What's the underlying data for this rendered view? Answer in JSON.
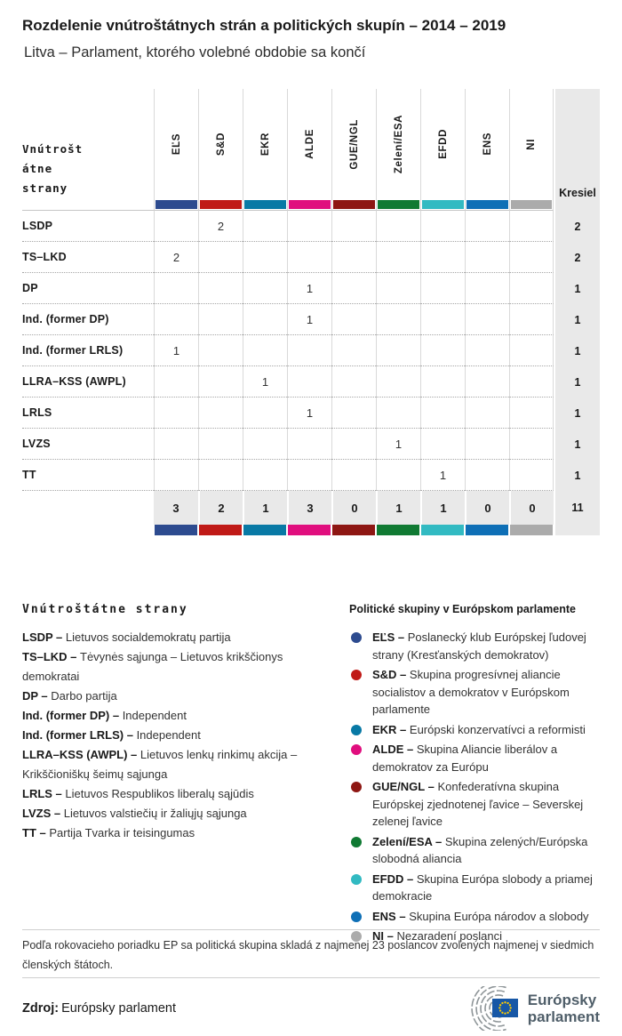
{
  "header": {
    "title": "Rozdelenie vnútroštátnych strán a politických skupín – 2014 – 2019",
    "subtitle": "Litva – Parlament, ktorého volebné obdobie sa končí"
  },
  "table": {
    "row_header_lines": [
      "Vnútrošt",
      "átne",
      "strany"
    ],
    "seats_label": "Kresiel",
    "groups": [
      {
        "label": "EĽS",
        "color": "#2d4b8f"
      },
      {
        "label": "S&D",
        "color": "#c01a17"
      },
      {
        "label": "EKR",
        "color": "#0879a5"
      },
      {
        "label": "ALDE",
        "color": "#e00e7e"
      },
      {
        "label": "GUE/NGL",
        "color": "#8e1713"
      },
      {
        "label": "Zelení/ESA",
        "color": "#107a33"
      },
      {
        "label": "EFDD",
        "color": "#32bac2"
      },
      {
        "label": "ENS",
        "color": "#0e6fb6"
      },
      {
        "label": "NI",
        "color": "#ababab"
      }
    ],
    "rows": [
      {
        "party": "LSDP",
        "cells": [
          "",
          "2",
          "",
          "",
          "",
          "",
          "",
          "",
          ""
        ],
        "seats": "2"
      },
      {
        "party": "TS–LKD",
        "cells": [
          "2",
          "",
          "",
          "",
          "",
          "",
          "",
          "",
          ""
        ],
        "seats": "2"
      },
      {
        "party": "DP",
        "cells": [
          "",
          "",
          "",
          "1",
          "",
          "",
          "",
          "",
          ""
        ],
        "seats": "1"
      },
      {
        "party": "Ind. (former DP)",
        "cells": [
          "",
          "",
          "",
          "1",
          "",
          "",
          "",
          "",
          ""
        ],
        "seats": "1"
      },
      {
        "party": "Ind. (former LRLS)",
        "cells": [
          "1",
          "",
          "",
          "",
          "",
          "",
          "",
          "",
          ""
        ],
        "seats": "1"
      },
      {
        "party": "LLRA–KSS (AWPL)",
        "cells": [
          "",
          "",
          "1",
          "",
          "",
          "",
          "",
          "",
          ""
        ],
        "seats": "1"
      },
      {
        "party": "LRLS",
        "cells": [
          "",
          "",
          "",
          "1",
          "",
          "",
          "",
          "",
          ""
        ],
        "seats": "1"
      },
      {
        "party": "LVZS",
        "cells": [
          "",
          "",
          "",
          "",
          "",
          "1",
          "",
          "",
          ""
        ],
        "seats": "1"
      },
      {
        "party": "TT",
        "cells": [
          "",
          "",
          "",
          "",
          "",
          "",
          "1",
          "",
          ""
        ],
        "seats": "1"
      }
    ],
    "totals": {
      "cells": [
        "3",
        "2",
        "1",
        "3",
        "0",
        "1",
        "1",
        "0",
        "0"
      ],
      "seats": "11"
    }
  },
  "chart_data": {
    "type": "table",
    "title": "Rozdelenie vnútroštátnych strán a politických skupín – 2014 – 2019",
    "subtitle": "Litva – Parlament, ktorého volebné obdobie sa končí",
    "columns": [
      "EĽS",
      "S&D",
      "EKR",
      "ALDE",
      "GUE/NGL",
      "Zelení/ESA",
      "EFDD",
      "ENS",
      "NI",
      "Kresiel"
    ],
    "rows": [
      {
        "party": "LSDP",
        "values": [
          null,
          2,
          null,
          null,
          null,
          null,
          null,
          null,
          null
        ],
        "seats": 2
      },
      {
        "party": "TS–LKD",
        "values": [
          2,
          null,
          null,
          null,
          null,
          null,
          null,
          null,
          null
        ],
        "seats": 2
      },
      {
        "party": "DP",
        "values": [
          null,
          null,
          null,
          1,
          null,
          null,
          null,
          null,
          null
        ],
        "seats": 1
      },
      {
        "party": "Ind. (former DP)",
        "values": [
          null,
          null,
          null,
          1,
          null,
          null,
          null,
          null,
          null
        ],
        "seats": 1
      },
      {
        "party": "Ind. (former LRLS)",
        "values": [
          1,
          null,
          null,
          null,
          null,
          null,
          null,
          null,
          null
        ],
        "seats": 1
      },
      {
        "party": "LLRA–KSS (AWPL)",
        "values": [
          null,
          null,
          1,
          null,
          null,
          null,
          null,
          null,
          null
        ],
        "seats": 1
      },
      {
        "party": "LRLS",
        "values": [
          null,
          null,
          null,
          1,
          null,
          null,
          null,
          null,
          null
        ],
        "seats": 1
      },
      {
        "party": "LVZS",
        "values": [
          null,
          null,
          null,
          null,
          null,
          1,
          null,
          null,
          null
        ],
        "seats": 1
      },
      {
        "party": "TT",
        "values": [
          null,
          null,
          null,
          null,
          null,
          null,
          1,
          null,
          null
        ],
        "seats": 1
      }
    ],
    "totals": [
      3,
      2,
      1,
      3,
      0,
      1,
      1,
      0,
      0
    ],
    "total_seats": 11
  },
  "legend_parties": {
    "title": "Vnútroštátne strany",
    "items": [
      {
        "abbr": "LSDP –",
        "name": "Lietuvos socialdemokratų partija"
      },
      {
        "abbr": "TS–LKD –",
        "name": "Tėvynės sąjunga – Lietuvos krikščionys demokratai"
      },
      {
        "abbr": "DP –",
        "name": "Darbo partija"
      },
      {
        "abbr": "Ind. (former DP) –",
        "name": "Independent"
      },
      {
        "abbr": "Ind. (former LRLS) –",
        "name": "Independent"
      },
      {
        "abbr": "LLRA–KSS (AWPL) –",
        "name": "Lietuvos lenkų rinkimų akcija – Krikščioniškų šeimų sąjunga"
      },
      {
        "abbr": "LRLS –",
        "name": "Lietuvos Respublikos liberalų sąjūdis"
      },
      {
        "abbr": "LVZS –",
        "name": "Lietuvos valstiečių ir žaliųjų sąjunga"
      },
      {
        "abbr": "TT –",
        "name": "Partija Tvarka ir teisingumas"
      }
    ]
  },
  "legend_groups": {
    "title": "Politické skupiny v Európskom parlamente",
    "items": [
      {
        "abbr": "EĽS –",
        "name": "Poslanecký klub Európskej ľudovej strany (Kresťanských demokratov)",
        "color": "#2d4b8f"
      },
      {
        "abbr": "S&D –",
        "name": "Skupina progresívnej aliancie socialistov a demokratov v Európskom parlamente",
        "color": "#c01a17"
      },
      {
        "abbr": "EKR –",
        "name": "Európski konzervatívci a reformisti",
        "color": "#0879a5"
      },
      {
        "abbr": "ALDE –",
        "name": "Skupina Aliancie liberálov a demokratov za Európu",
        "color": "#e00e7e"
      },
      {
        "abbr": "GUE/NGL –",
        "name": "Konfederatívna skupina Európskej zjednotenej ľavice – Severskej zelenej ľavice",
        "color": "#8e1713"
      },
      {
        "abbr": "Zelení/ESA –",
        "name": "Skupina zelených/Európska slobodná aliancia",
        "color": "#107a33"
      },
      {
        "abbr": "EFDD –",
        "name": "Skupina Európa slobody a priamej demokracie",
        "color": "#32bac2"
      },
      {
        "abbr": "ENS –",
        "name": "Skupina Európa národov a slobody",
        "color": "#0e6fb6"
      },
      {
        "abbr": "NI –",
        "name": "Nezaradení poslanci",
        "color": "#ababab"
      }
    ]
  },
  "note": "Podľa rokovacieho poriadku EP sa politická skupina skladá z najmenej 23 poslancov zvolených najmenej v siedmich členských štátoch.",
  "source": {
    "label": "Zdroj:",
    "value": "Európsky parlament"
  },
  "logo": {
    "line1": "Európsky",
    "line2": "parlament",
    "flag_color": "#1757a6",
    "star_color": "#ffcc00",
    "arc_color": "#8e9598"
  }
}
